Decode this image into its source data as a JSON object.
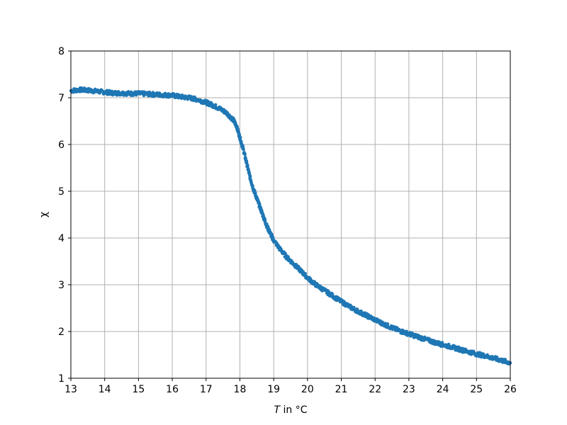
{
  "chart_data": {
    "type": "scatter",
    "xlabel_italic": "T",
    "xlabel_rest": " in °C",
    "ylabel": "χ",
    "xlim": [
      13,
      26
    ],
    "ylim": [
      1,
      8
    ],
    "xticks": [
      13,
      14,
      15,
      16,
      17,
      18,
      19,
      20,
      21,
      22,
      23,
      24,
      25,
      26
    ],
    "yticks": [
      1,
      2,
      3,
      4,
      5,
      6,
      7,
      8
    ],
    "grid": true,
    "marker_color": "#1f77b4",
    "series": [
      {
        "x": [
          13.0,
          13.25,
          13.5,
          13.75,
          14.0,
          14.25,
          14.5,
          14.75,
          15.0,
          15.25,
          15.5,
          15.75,
          16.0,
          16.25,
          16.5,
          16.75,
          17.0,
          17.2,
          17.4,
          17.6,
          17.8,
          17.9,
          18.0,
          18.1,
          18.2,
          18.3,
          18.4,
          18.5,
          18.6,
          18.7,
          18.8,
          18.9,
          19.0,
          19.2,
          19.4,
          19.6,
          19.8,
          20.0,
          20.25,
          20.5,
          20.75,
          21.0,
          21.25,
          21.5,
          21.75,
          22.0,
          22.25,
          22.5,
          22.75,
          23.0,
          23.25,
          23.5,
          23.75,
          24.0,
          24.25,
          24.5,
          24.75,
          25.0,
          25.25,
          25.5,
          25.75,
          26.0
        ],
        "y": [
          7.15,
          7.17,
          7.16,
          7.14,
          7.12,
          7.1,
          7.1,
          7.09,
          7.09,
          7.08,
          7.07,
          7.06,
          7.05,
          7.02,
          7.0,
          6.96,
          6.9,
          6.84,
          6.77,
          6.68,
          6.53,
          6.4,
          6.15,
          5.9,
          5.6,
          5.3,
          5.05,
          4.85,
          4.65,
          4.45,
          4.25,
          4.1,
          3.95,
          3.75,
          3.58,
          3.44,
          3.3,
          3.15,
          3.0,
          2.88,
          2.76,
          2.64,
          2.53,
          2.43,
          2.34,
          2.25,
          2.16,
          2.08,
          2.01,
          1.95,
          1.89,
          1.83,
          1.77,
          1.72,
          1.67,
          1.62,
          1.57,
          1.52,
          1.48,
          1.43,
          1.38,
          1.33
        ]
      }
    ]
  }
}
